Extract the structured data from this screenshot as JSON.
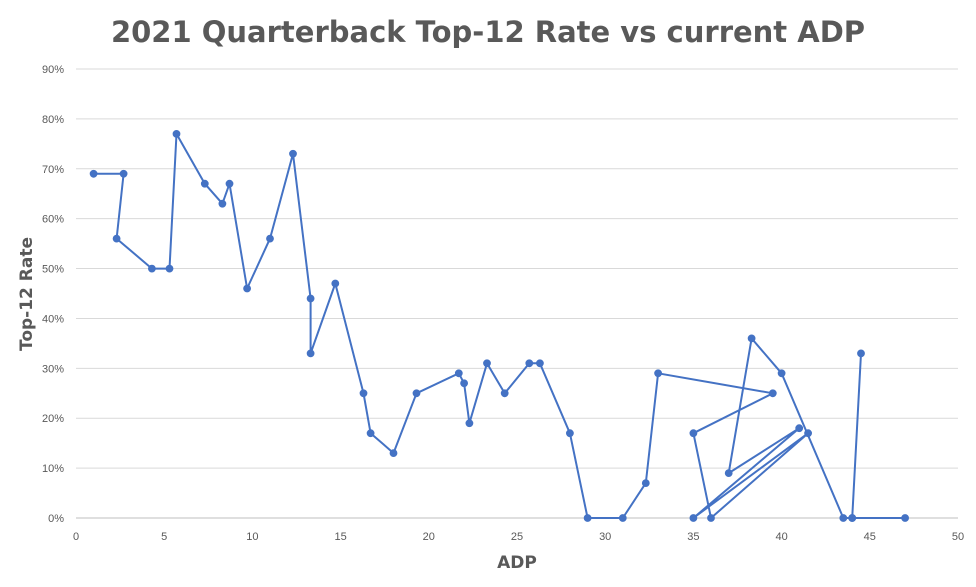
{
  "chart_data": {
    "type": "line",
    "title": "2021 Quarterback Top-12 Rate vs current ADP",
    "xlabel": "ADP",
    "ylabel": "Top-12 Rate",
    "xlim": [
      0,
      50
    ],
    "ylim": [
      0,
      0.9
    ],
    "x_ticks": [
      0,
      5,
      10,
      15,
      20,
      25,
      30,
      35,
      40,
      45,
      50
    ],
    "y_ticks": [
      0,
      0.1,
      0.2,
      0.3,
      0.4,
      0.5,
      0.6,
      0.7,
      0.8,
      0.9
    ],
    "x_tick_labels": [
      "0",
      "5",
      "10",
      "15",
      "20",
      "25",
      "30",
      "35",
      "40",
      "45",
      "50"
    ],
    "y_tick_labels": [
      "0%",
      "10%",
      "20%",
      "30%",
      "40%",
      "50%",
      "60%",
      "70%",
      "80%",
      "90%"
    ],
    "grid": "horizontal",
    "markers": true,
    "color": "#4472c4",
    "series": [
      {
        "points": [
          [
            1.0,
            0.69
          ],
          [
            2.7,
            0.69
          ],
          [
            2.3,
            0.56
          ],
          [
            4.3,
            0.5
          ],
          [
            5.3,
            0.5
          ],
          [
            5.7,
            0.77
          ],
          [
            7.3,
            0.67
          ],
          [
            8.3,
            0.63
          ],
          [
            8.7,
            0.67
          ],
          [
            9.7,
            0.46
          ],
          [
            11.0,
            0.56
          ],
          [
            12.3,
            0.73
          ],
          [
            13.3,
            0.44
          ],
          [
            13.3,
            0.33
          ],
          [
            14.7,
            0.47
          ],
          [
            16.3,
            0.25
          ],
          [
            16.7,
            0.17
          ],
          [
            18.0,
            0.13
          ],
          [
            19.3,
            0.25
          ],
          [
            21.7,
            0.29
          ],
          [
            22.0,
            0.27
          ],
          [
            22.3,
            0.19
          ],
          [
            23.3,
            0.31
          ],
          [
            24.3,
            0.25
          ],
          [
            25.7,
            0.31
          ],
          [
            26.3,
            0.31
          ],
          [
            28.0,
            0.17
          ],
          [
            29.0,
            0.0
          ],
          [
            31.0,
            0.0
          ],
          [
            32.3,
            0.07
          ],
          [
            33.0,
            0.29
          ],
          [
            39.5,
            0.25
          ],
          [
            35.0,
            0.17
          ],
          [
            36.0,
            0.0
          ],
          [
            41.5,
            0.17
          ],
          [
            35.0,
            0.0
          ],
          [
            41.0,
            0.18
          ],
          [
            37.0,
            0.09
          ],
          [
            38.3,
            0.36
          ],
          [
            40.0,
            0.29
          ],
          [
            43.5,
            0.0
          ],
          [
            44.0,
            0.0
          ],
          [
            44.5,
            0.33
          ],
          [
            44.0,
            0.0
          ],
          [
            47.0,
            0.0
          ]
        ]
      }
    ]
  }
}
